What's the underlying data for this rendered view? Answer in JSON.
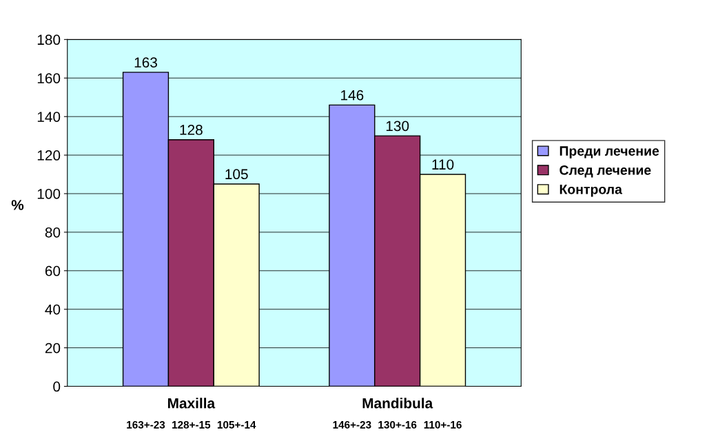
{
  "chart_data": {
    "type": "bar",
    "categories": [
      "Maxilla",
      "Mandibula"
    ],
    "ylabel": "%",
    "series": [
      {
        "name": "Преди лечение",
        "color": "#9999ff",
        "values": [
          163,
          146
        ]
      },
      {
        "name": "След лечение",
        "color": "#993366",
        "values": [
          128,
          130
        ]
      },
      {
        "name": "Контрола",
        "color": "#ffffcc",
        "values": [
          105,
          110
        ]
      }
    ],
    "ylim": [
      0,
      180
    ],
    "yticks": [
      0,
      20,
      40,
      60,
      80,
      100,
      120,
      140,
      160,
      180
    ],
    "grid": "y",
    "legend": "right",
    "data_labels": true,
    "annotations": [
      "163+-23",
      "128+-15",
      "105+-14",
      "146+-23",
      "130+-16",
      "110+-16"
    ]
  }
}
